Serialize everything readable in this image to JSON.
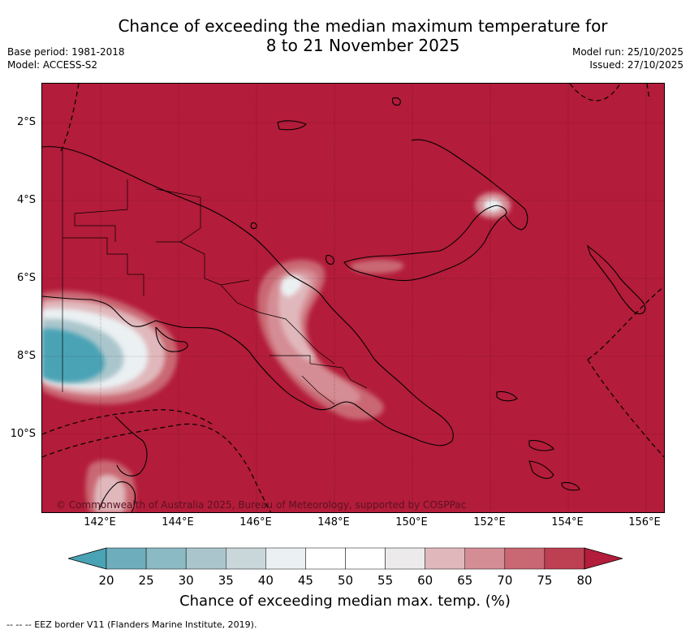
{
  "title": {
    "line1": "Chance of exceeding the median maximum temperature for",
    "line2": "8 to 21 November 2025"
  },
  "meta_left": {
    "base_period": "Base period: 1981-2018",
    "model": "Model: ACCESS-S2"
  },
  "meta_right": {
    "model_run": "Model run: 25/10/2025",
    "issued": "Issued: 27/10/2025"
  },
  "map": {
    "background_color": "#b31c3a",
    "copyright": "© Commonwealth of Australia 2025, Bureau of Meteorology, supported by COSPPac",
    "lat_ticks": [
      "2°S",
      "4°S",
      "6°S",
      "8°S",
      "10°S"
    ],
    "lon_ticks": [
      "142°E",
      "144°E",
      "146°E",
      "148°E",
      "150°E",
      "152°E",
      "154°E",
      "156°E"
    ]
  },
  "colorbar": {
    "title": "Chance of exceeding median max. temp. (%)",
    "tick_labels": [
      "20",
      "25",
      "30",
      "35",
      "40",
      "45",
      "50",
      "55",
      "60",
      "65",
      "70",
      "75",
      "80"
    ],
    "colors": [
      "#4aa3b5",
      "#6eadbc",
      "#8bbac5",
      "#aac6cc",
      "#c9d6da",
      "#ebf0f2",
      "#ffffff",
      "#ffffff",
      "#eceaea",
      "#e0b8bc",
      "#d58d95",
      "#c96772",
      "#bd3f52",
      "#b31c3a"
    ]
  },
  "footer": "--  --  -- EEZ border V11 (Flanders Marine Institute, 2019)."
}
